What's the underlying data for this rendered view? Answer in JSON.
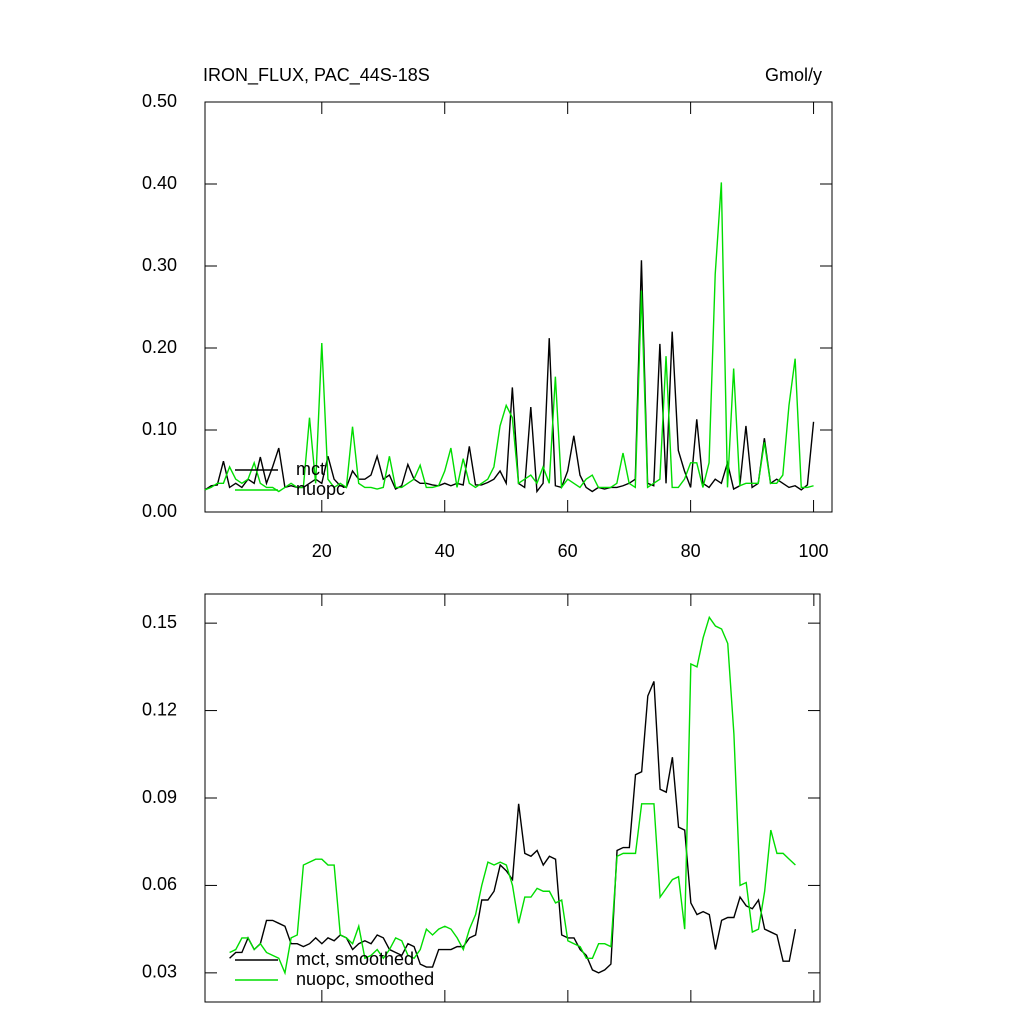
{
  "chart_data": [
    {
      "type": "line",
      "title": "IRON_FLUX, PAC_44S-18S",
      "units": "Gmol/y",
      "legend": "lower left",
      "x": [
        1,
        2,
        3,
        4,
        5,
        6,
        7,
        8,
        9,
        10,
        11,
        12,
        13,
        14,
        15,
        16,
        17,
        18,
        19,
        20,
        21,
        22,
        23,
        24,
        25,
        26,
        27,
        28,
        29,
        30,
        31,
        32,
        33,
        34,
        35,
        36,
        37,
        38,
        39,
        40,
        41,
        42,
        43,
        44,
        45,
        46,
        47,
        48,
        49,
        50,
        51,
        52,
        53,
        54,
        55,
        56,
        57,
        58,
        59,
        60,
        61,
        62,
        63,
        64,
        65,
        66,
        67,
        68,
        69,
        70,
        71,
        72,
        73,
        74,
        75,
        76,
        77,
        78,
        79,
        80,
        81,
        82,
        83,
        84,
        85,
        86,
        87,
        88,
        89,
        90,
        91,
        92,
        93,
        94,
        95,
        96,
        97,
        98,
        99,
        100
      ],
      "series": [
        {
          "name": "mct",
          "color": "#000000",
          "values": [
            0.027,
            0.032,
            0.033,
            0.062,
            0.03,
            0.035,
            0.03,
            0.04,
            0.035,
            0.067,
            0.035,
            0.055,
            0.078,
            0.03,
            0.032,
            0.03,
            0.03,
            0.035,
            0.04,
            0.035,
            0.068,
            0.04,
            0.032,
            0.03,
            0.05,
            0.04,
            0.04,
            0.045,
            0.068,
            0.04,
            0.045,
            0.028,
            0.032,
            0.058,
            0.04,
            0.035,
            0.035,
            0.033,
            0.032,
            0.035,
            0.032,
            0.035,
            0.033,
            0.08,
            0.033,
            0.033,
            0.036,
            0.04,
            0.05,
            0.035,
            0.152,
            0.035,
            0.03,
            0.128,
            0.025,
            0.035,
            0.212,
            0.032,
            0.03,
            0.05,
            0.093,
            0.045,
            0.03,
            0.025,
            0.03,
            0.028,
            0.03,
            0.03,
            0.032,
            0.035,
            0.04,
            0.307,
            0.035,
            0.032,
            0.205,
            0.035,
            0.22,
            0.075,
            0.05,
            0.03,
            0.113,
            0.035,
            0.03,
            0.04,
            0.035,
            0.06,
            0.028,
            0.032,
            0.105,
            0.03,
            0.035,
            0.09,
            0.035,
            0.04,
            0.035,
            0.03,
            0.032,
            0.027,
            0.033,
            0.11
          ]
        },
        {
          "name": "nuopc",
          "color": "#00dd00",
          "values": [
            0.027,
            0.03,
            0.035,
            0.035,
            0.055,
            0.04,
            0.035,
            0.04,
            0.06,
            0.035,
            0.03,
            0.03,
            0.025,
            0.03,
            0.035,
            0.03,
            0.03,
            0.115,
            0.035,
            0.206,
            0.04,
            0.03,
            0.035,
            0.03,
            0.104,
            0.035,
            0.03,
            0.03,
            0.028,
            0.03,
            0.068,
            0.03,
            0.03,
            0.035,
            0.04,
            0.057,
            0.03,
            0.03,
            0.032,
            0.05,
            0.078,
            0.03,
            0.065,
            0.035,
            0.03,
            0.035,
            0.04,
            0.055,
            0.105,
            0.13,
            0.115,
            0.035,
            0.04,
            0.045,
            0.035,
            0.055,
            0.035,
            0.165,
            0.03,
            0.04,
            0.035,
            0.03,
            0.04,
            0.045,
            0.03,
            0.03,
            0.03,
            0.035,
            0.072,
            0.035,
            0.03,
            0.27,
            0.03,
            0.035,
            0.04,
            0.19,
            0.03,
            0.03,
            0.04,
            0.06,
            0.06,
            0.03,
            0.06,
            0.29,
            0.402,
            0.03,
            0.175,
            0.032,
            0.035,
            0.035,
            0.035,
            0.085,
            0.035,
            0.035,
            0.045,
            0.13,
            0.187,
            0.03,
            0.03,
            0.032
          ]
        }
      ],
      "xlim": [
        1,
        103
      ],
      "xticks": [
        20,
        40,
        60,
        80,
        100
      ],
      "xtick_labels": true,
      "ylim": [
        0,
        0.5
      ],
      "yticks": [
        {
          "value": 0,
          "label": "0.00"
        },
        {
          "value": 0.1,
          "label": "0.10"
        },
        {
          "value": 0.2,
          "label": "0.20"
        },
        {
          "value": 0.3,
          "label": "0.30"
        },
        {
          "value": 0.4,
          "label": "0.40"
        },
        {
          "value": 0.5,
          "label": "0.50"
        }
      ],
      "grid": false
    },
    {
      "type": "line",
      "legend": "lower left",
      "x": [
        5,
        6,
        7,
        8,
        9,
        10,
        11,
        12,
        13,
        14,
        15,
        16,
        17,
        18,
        19,
        20,
        21,
        22,
        23,
        24,
        25,
        26,
        27,
        28,
        29,
        30,
        31,
        32,
        33,
        34,
        35,
        36,
        37,
        38,
        39,
        40,
        41,
        42,
        43,
        44,
        45,
        46,
        47,
        48,
        49,
        50,
        51,
        52,
        53,
        54,
        55,
        56,
        57,
        58,
        59,
        60,
        61,
        62,
        63,
        64,
        65,
        66,
        67,
        68,
        69,
        70,
        71,
        72,
        73,
        74,
        75,
        76,
        77,
        78,
        79,
        80,
        81,
        82,
        83,
        84,
        85,
        86,
        87,
        88,
        89,
        90,
        91,
        92,
        93,
        94,
        95,
        96,
        97
      ],
      "series": [
        {
          "name": "mct, smoothed",
          "color": "#000000",
          "values": [
            0.035,
            0.037,
            0.037,
            0.042,
            0.038,
            0.04,
            0.048,
            0.048,
            0.047,
            0.046,
            0.04,
            0.04,
            0.039,
            0.04,
            0.042,
            0.04,
            0.042,
            0.041,
            0.043,
            0.042,
            0.038,
            0.04,
            0.041,
            0.04,
            0.043,
            0.042,
            0.038,
            0.037,
            0.036,
            0.04,
            0.039,
            0.033,
            0.032,
            0.032,
            0.038,
            0.038,
            0.038,
            0.039,
            0.039,
            0.042,
            0.043,
            0.055,
            0.055,
            0.058,
            0.067,
            0.065,
            0.062,
            0.088,
            0.071,
            0.07,
            0.072,
            0.067,
            0.07,
            0.069,
            0.043,
            0.042,
            0.042,
            0.038,
            0.036,
            0.031,
            0.03,
            0.031,
            0.033,
            0.072,
            0.073,
            0.073,
            0.098,
            0.099,
            0.125,
            0.13,
            0.093,
            0.092,
            0.104,
            0.08,
            0.079,
            0.054,
            0.05,
            0.051,
            0.05,
            0.038,
            0.048,
            0.049,
            0.049,
            0.056,
            0.053,
            0.052,
            0.055,
            0.045,
            0.044,
            0.043,
            0.034,
            0.034,
            0.045
          ]
        },
        {
          "name": "nuopc, smoothed",
          "color": "#00dd00",
          "values": [
            0.037,
            0.038,
            0.042,
            0.042,
            0.038,
            0.04,
            0.037,
            0.036,
            0.035,
            0.03,
            0.042,
            0.043,
            0.067,
            0.068,
            0.069,
            0.069,
            0.067,
            0.067,
            0.043,
            0.042,
            0.04,
            0.046,
            0.035,
            0.036,
            0.038,
            0.035,
            0.038,
            0.042,
            0.041,
            0.036,
            0.035,
            0.038,
            0.045,
            0.043,
            0.045,
            0.046,
            0.045,
            0.042,
            0.038,
            0.045,
            0.05,
            0.06,
            0.068,
            0.067,
            0.068,
            0.067,
            0.06,
            0.047,
            0.056,
            0.056,
            0.059,
            0.058,
            0.058,
            0.054,
            0.055,
            0.041,
            0.04,
            0.039,
            0.035,
            0.035,
            0.04,
            0.04,
            0.039,
            0.07,
            0.071,
            0.071,
            0.071,
            0.088,
            0.088,
            0.088,
            0.056,
            0.059,
            0.062,
            0.063,
            0.045,
            0.136,
            0.135,
            0.145,
            0.152,
            0.149,
            0.148,
            0.143,
            0.112,
            0.06,
            0.061,
            0.044,
            0.045,
            0.058,
            0.079,
            0.071,
            0.071,
            0.069,
            0.067
          ]
        }
      ],
      "xlim": [
        1,
        101
      ],
      "xticks": [
        20,
        40,
        60,
        80,
        100
      ],
      "xtick_labels": false,
      "ylim": [
        0.02,
        0.16
      ],
      "yticks": [
        0.03,
        0.06,
        0.09,
        0.12,
        0.15
      ],
      "grid": false
    }
  ]
}
